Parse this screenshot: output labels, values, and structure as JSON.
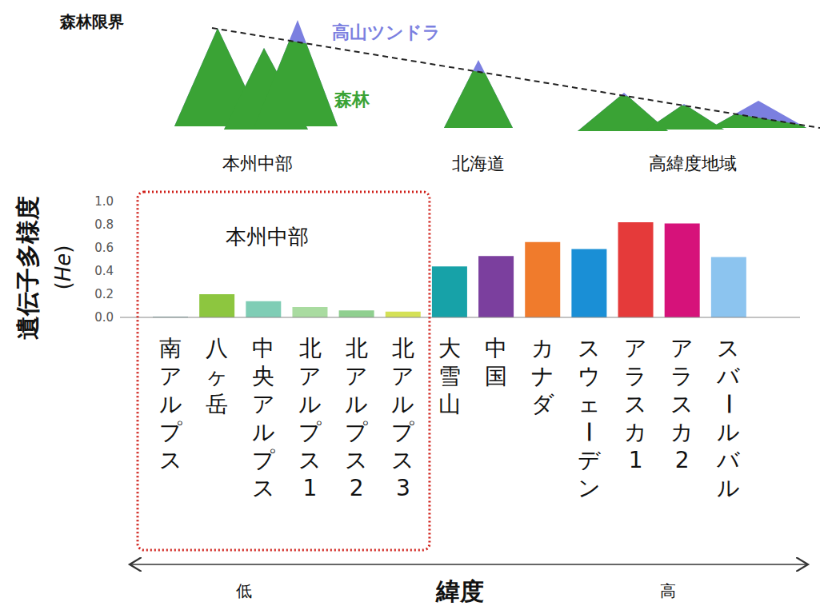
{
  "chart_data": {
    "type": "bar",
    "categories": [
      "南アルプス",
      "八ヶ岳",
      "中央アルプス",
      "北アルプス1",
      "北アルプス2",
      "北アルプス3",
      "大雪山",
      "中国",
      "カナダ",
      "スウェーデン",
      "アラスカ1",
      "アラスカ2",
      "スバールバル"
    ],
    "values": [
      0.005,
      0.2,
      0.14,
      0.09,
      0.06,
      0.05,
      0.44,
      0.53,
      0.65,
      0.59,
      0.82,
      0.81,
      0.52
    ],
    "colors": [
      "#4f8a8b",
      "#8dc63f",
      "#7fcdb5",
      "#a9dba0",
      "#8fcf8f",
      "#d4e157",
      "#17a2a8",
      "#7b3f9e",
      "#f07b2c",
      "#1a8fd6",
      "#e53a3a",
      "#d6127a",
      "#8cc4ef"
    ],
    "ylabel": "遺伝子多様度 (He)",
    "xlabel": "緯度",
    "x_direction_labels": [
      "低",
      "高"
    ],
    "ylim": [
      0,
      1
    ],
    "yticks": [
      {
        "value": 0,
        "label": "0.0"
      },
      0.2,
      0.4,
      0.6,
      0.8,
      {
        "value": 1,
        "label": "1.0"
      }
    ],
    "grid": false,
    "group_box": {
      "label": "本州中部",
      "from": "南アルプス",
      "to": "北アルプス3"
    }
  },
  "diagram": {
    "tree_line_label": "森林限界",
    "tundra_label": "高山ツンドラ",
    "forest_label": "森林",
    "regions": [
      "本州中部",
      "北海道",
      "高緯度地域"
    ]
  }
}
